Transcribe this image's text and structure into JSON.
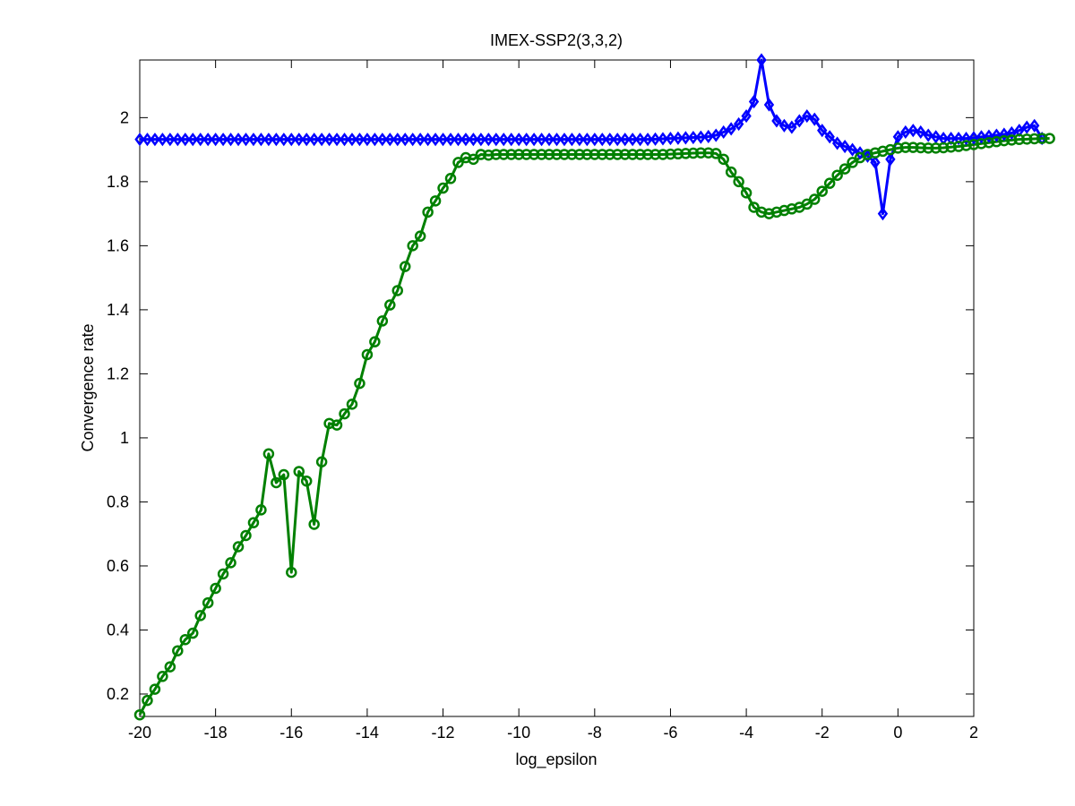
{
  "chart_data": {
    "type": "line",
    "title": "IMEX-SSP2(3,3,2)",
    "xlabel": "log_epsilon",
    "ylabel": "Convergence rate",
    "xlim": [
      -20,
      2
    ],
    "ylim": [
      0.13,
      2.18
    ],
    "xticks": [
      -20,
      -18,
      -16,
      -14,
      -12,
      -10,
      -8,
      -6,
      -4,
      -2,
      0,
      2
    ],
    "yticks": [
      0.2,
      0.4,
      0.6,
      0.8,
      1,
      1.2,
      1.4,
      1.6,
      1.8,
      2
    ],
    "grid": false,
    "legend": "none",
    "x_start": -20,
    "x_step": 0.2,
    "series": [
      {
        "color": "#0000ff",
        "marker": "diamond",
        "values": [
          1.932,
          1.932,
          1.932,
          1.932,
          1.932,
          1.932,
          1.932,
          1.932,
          1.932,
          1.932,
          1.932,
          1.932,
          1.932,
          1.932,
          1.932,
          1.932,
          1.932,
          1.932,
          1.932,
          1.932,
          1.932,
          1.932,
          1.932,
          1.932,
          1.932,
          1.932,
          1.932,
          1.932,
          1.932,
          1.932,
          1.932,
          1.932,
          1.932,
          1.932,
          1.932,
          1.932,
          1.932,
          1.932,
          1.932,
          1.932,
          1.932,
          1.932,
          1.932,
          1.932,
          1.932,
          1.932,
          1.932,
          1.932,
          1.932,
          1.932,
          1.932,
          1.932,
          1.932,
          1.932,
          1.932,
          1.932,
          1.932,
          1.932,
          1.932,
          1.932,
          1.932,
          1.932,
          1.932,
          1.932,
          1.932,
          1.932,
          1.932,
          1.932,
          1.933,
          1.934,
          1.935,
          1.936,
          1.937,
          1.938,
          1.939,
          1.941,
          1.945,
          1.955,
          1.965,
          1.98,
          2.005,
          2.05,
          2.18,
          2.04,
          1.99,
          1.975,
          1.97,
          1.99,
          2.005,
          1.995,
          1.96,
          1.94,
          1.92,
          1.91,
          1.9,
          1.89,
          1.88,
          1.86,
          1.7,
          1.87,
          1.94,
          1.955,
          1.96,
          1.955,
          1.945,
          1.94,
          1.935,
          1.935,
          1.935,
          1.935,
          1.937,
          1.94,
          1.942,
          1.945,
          1.948,
          1.952,
          1.96,
          1.97,
          1.975,
          1.935
        ]
      },
      {
        "color": "#008000",
        "marker": "circle",
        "values": [
          0.135,
          0.18,
          0.215,
          0.255,
          0.285,
          0.335,
          0.37,
          0.39,
          0.445,
          0.485,
          0.53,
          0.575,
          0.61,
          0.66,
          0.695,
          0.735,
          0.775,
          0.95,
          0.86,
          0.885,
          0.58,
          0.895,
          0.865,
          0.73,
          0.925,
          1.045,
          1.04,
          1.075,
          1.105,
          1.17,
          1.26,
          1.3,
          1.365,
          1.415,
          1.46,
          1.535,
          1.6,
          1.63,
          1.705,
          1.74,
          1.78,
          1.81,
          1.86,
          1.875,
          1.87,
          1.885,
          1.883,
          1.885,
          1.885,
          1.885,
          1.885,
          1.885,
          1.885,
          1.885,
          1.885,
          1.885,
          1.885,
          1.885,
          1.885,
          1.885,
          1.885,
          1.885,
          1.885,
          1.885,
          1.885,
          1.885,
          1.885,
          1.885,
          1.885,
          1.885,
          1.886,
          1.887,
          1.888,
          1.889,
          1.89,
          1.89,
          1.888,
          1.87,
          1.83,
          1.8,
          1.765,
          1.72,
          1.705,
          1.7,
          1.705,
          1.71,
          1.715,
          1.72,
          1.73,
          1.745,
          1.77,
          1.795,
          1.82,
          1.84,
          1.86,
          1.875,
          1.885,
          1.89,
          1.895,
          1.9,
          1.905,
          1.907,
          1.907,
          1.906,
          1.905,
          1.905,
          1.906,
          1.908,
          1.91,
          1.913,
          1.916,
          1.919,
          1.922,
          1.925,
          1.928,
          1.93,
          1.932,
          1.933,
          1.934,
          1.935,
          1.935
        ]
      }
    ]
  }
}
